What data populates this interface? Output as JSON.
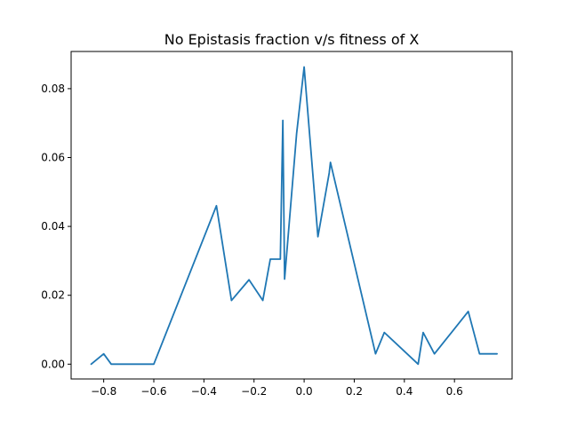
{
  "chart_data": {
    "type": "line",
    "title": "No Epistasis fraction v/s fitness of X",
    "xlabel": "",
    "ylabel": "",
    "xlim": [
      -0.93,
      0.83
    ],
    "ylim": [
      -0.0043,
      0.0908
    ],
    "grid": false,
    "x_ticks": [
      {
        "value": -0.8,
        "label": "−0.8"
      },
      {
        "value": -0.6,
        "label": "−0.6"
      },
      {
        "value": -0.4,
        "label": "−0.4"
      },
      {
        "value": -0.2,
        "label": "−0.2"
      },
      {
        "value": 0.0,
        "label": "0.0"
      },
      {
        "value": 0.2,
        "label": "0.2"
      },
      {
        "value": 0.4,
        "label": "0.4"
      },
      {
        "value": 0.6,
        "label": "0.6"
      }
    ],
    "y_ticks": [
      {
        "value": 0.0,
        "label": "0.00"
      },
      {
        "value": 0.02,
        "label": "0.02"
      },
      {
        "value": 0.04,
        "label": "0.04"
      },
      {
        "value": 0.06,
        "label": "0.06"
      },
      {
        "value": 0.08,
        "label": "0.08"
      }
    ],
    "series": [
      {
        "color": "#1f77b4",
        "x": [
          -0.85,
          -0.8,
          -0.77,
          -0.6,
          -0.35,
          -0.29,
          -0.22,
          -0.165,
          -0.135,
          -0.095,
          -0.085,
          -0.078,
          -0.03,
          0.0,
          0.055,
          0.1,
          0.105,
          0.285,
          0.32,
          0.455,
          0.475,
          0.52,
          0.655,
          0.7,
          0.75,
          0.77
        ],
        "y": [
          0.0,
          0.003,
          0.0,
          0.0,
          0.046,
          0.0185,
          0.0245,
          0.0185,
          0.0305,
          0.0305,
          0.0708,
          0.0247,
          0.067,
          0.0863,
          0.037,
          0.0555,
          0.0586,
          0.003,
          0.0092,
          0.0,
          0.0092,
          0.003,
          0.0153,
          0.003,
          0.003,
          0.003
        ]
      }
    ]
  }
}
